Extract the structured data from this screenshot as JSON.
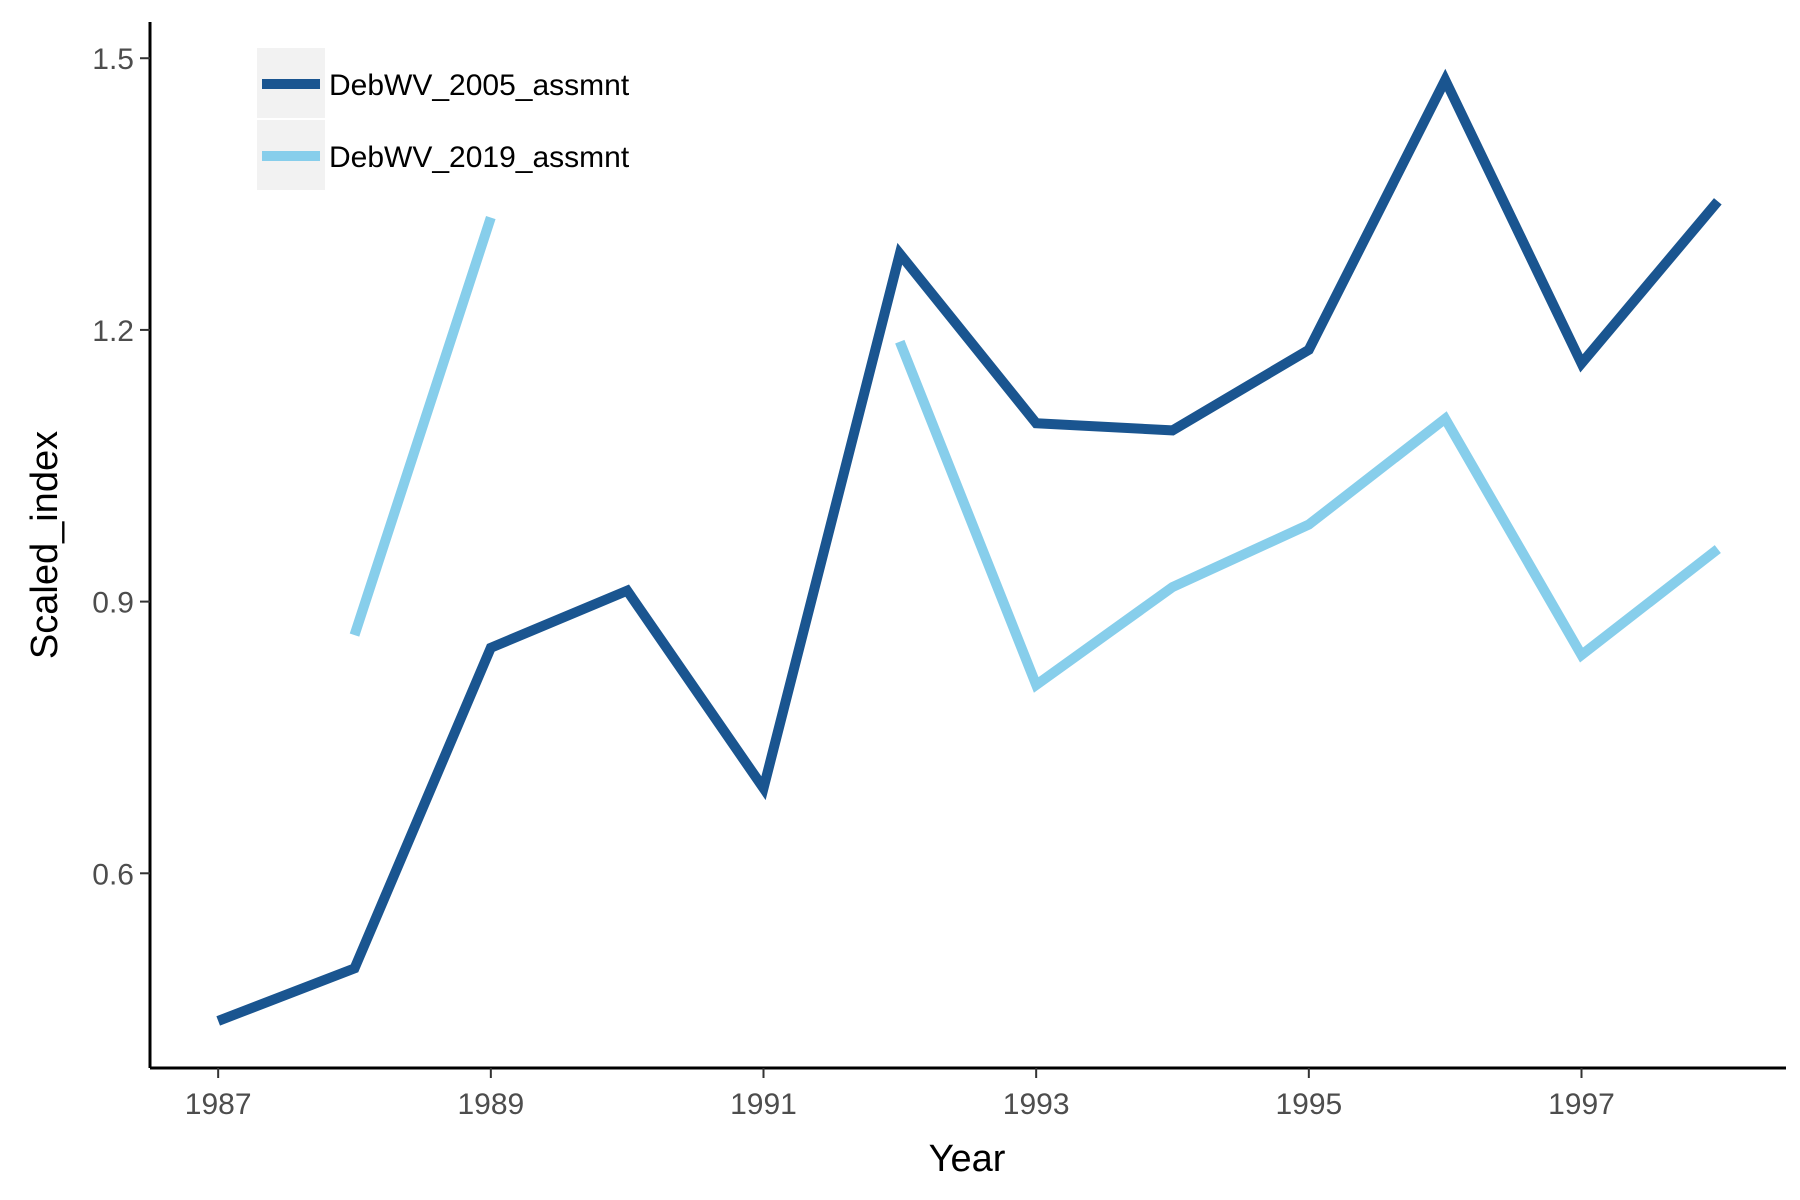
{
  "chart_data": {
    "type": "line",
    "xlabel": "Year",
    "ylabel": "Scaled_index",
    "xlim": [
      1986.5,
      1998.5
    ],
    "ylim": [
      0.385,
      1.54
    ],
    "x_ticks": [
      1987,
      1989,
      1991,
      1993,
      1995,
      1997
    ],
    "x_tick_labels": [
      "1987",
      "1989",
      "1991",
      "1993",
      "1995",
      "1997"
    ],
    "y_ticks": [
      0.6,
      0.9,
      1.2,
      1.5
    ],
    "y_tick_labels": [
      "0.6",
      "0.9",
      "1.2",
      "1.5"
    ],
    "grid": false,
    "legend_position": "top-left",
    "series": [
      {
        "name": "DebWV_2005_assmnt",
        "color": "#1a5590",
        "x": [
          1987,
          1988,
          1989,
          1990,
          1991,
          1992,
          1993,
          1994,
          1995,
          1996,
          1997,
          1998
        ],
        "y": [
          0.437,
          0.495,
          0.849,
          0.912,
          0.694,
          1.284,
          1.097,
          1.089,
          1.178,
          1.476,
          1.163,
          1.342
        ]
      },
      {
        "name": "DebWV_2019_assmnt",
        "color": "#87ceeb",
        "x": [
          1988,
          1989,
          null,
          1992,
          1993,
          1994,
          1995,
          1996,
          1997,
          1998
        ],
        "y": [
          0.863,
          1.324,
          null,
          1.187,
          0.808,
          0.916,
          0.985,
          1.102,
          0.841,
          0.958
        ]
      }
    ]
  }
}
